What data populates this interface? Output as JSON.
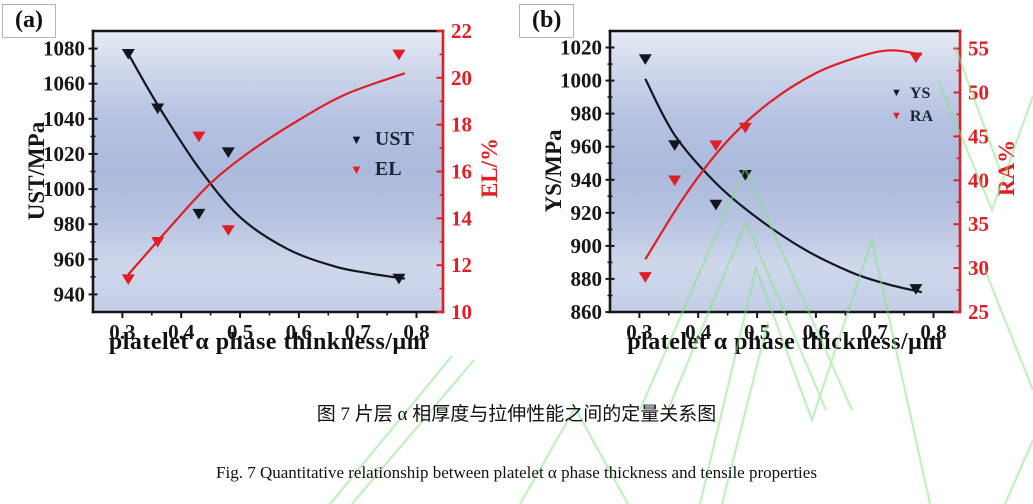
{
  "captions": {
    "zh": "图 7 片层 α 相厚度与拉伸性能之间的定量关系图",
    "en": "Fig. 7 Quantitative relationship between platelet α phase thickness and tensile properties"
  },
  "colors": {
    "black_series": "#14161f",
    "red_series": "#e01e25",
    "axis_black": "#161616",
    "legend_text": "#1c2533",
    "watermark_green": "#7fe57f",
    "plot_gradient": [
      [
        "0%",
        "#e7ecf5"
      ],
      [
        "10%",
        "#d4dcee"
      ],
      [
        "30%",
        "#b7c3e2"
      ],
      [
        "50%",
        "#abb9dc"
      ],
      [
        "68%",
        "#b8c4e1"
      ],
      [
        "84%",
        "#cfd8eb"
      ],
      [
        "100%",
        "#c3cee6"
      ]
    ]
  },
  "chart_data": [
    {
      "type": "scatter",
      "panel_label": "(a)",
      "x_label": "platelet α phase thinkness/μm",
      "xlim": [
        0.25,
        0.845
      ],
      "x_ticks": [
        0.3,
        0.4,
        0.5,
        0.6,
        0.7,
        0.8
      ],
      "left_axis": {
        "label": "UST/MPa",
        "lim": [
          930,
          1090
        ],
        "ticks": [
          940,
          960,
          980,
          1000,
          1020,
          1040,
          1060,
          1080
        ],
        "color": "#161616"
      },
      "right_axis": {
        "label": "EL/%",
        "lim": [
          10,
          22
        ],
        "ticks": [
          10,
          12,
          14,
          16,
          18,
          20,
          22
        ],
        "color": "#e01e25"
      },
      "legend_position": "middle-right",
      "grid": false,
      "series": [
        {
          "name": "UST",
          "axis": "left",
          "color": "#14161f",
          "marker": "triangle-down",
          "points": [
            [
              0.31,
              1077
            ],
            [
              0.36,
              1046
            ],
            [
              0.43,
              986
            ],
            [
              0.48,
              1021
            ],
            [
              0.77,
              949
            ]
          ],
          "trend": [
            [
              0.31,
              1077
            ],
            [
              0.36,
              1048
            ],
            [
              0.43,
              1012
            ],
            [
              0.5,
              984
            ],
            [
              0.58,
              966
            ],
            [
              0.66,
              956
            ],
            [
              0.72,
              952
            ],
            [
              0.78,
              949
            ]
          ]
        },
        {
          "name": "EL",
          "axis": "right",
          "color": "#e01e25",
          "marker": "triangle-down",
          "points": [
            [
              0.31,
              11.4
            ],
            [
              0.36,
              13.0
            ],
            [
              0.43,
              17.5
            ],
            [
              0.48,
              13.5
            ],
            [
              0.77,
              21.0
            ]
          ],
          "trend": [
            [
              0.31,
              11.6
            ],
            [
              0.38,
              13.6
            ],
            [
              0.45,
              15.5
            ],
            [
              0.52,
              16.9
            ],
            [
              0.6,
              18.2
            ],
            [
              0.68,
              19.3
            ],
            [
              0.78,
              20.2
            ]
          ]
        }
      ]
    },
    {
      "type": "scatter",
      "panel_label": "(b)",
      "x_label": "platelet α phase thickness/μm",
      "xlim": [
        0.25,
        0.845
      ],
      "x_ticks": [
        0.3,
        0.4,
        0.5,
        0.6,
        0.7,
        0.8
      ],
      "left_axis": {
        "label": "YS/MPa",
        "lim": [
          860,
          1030
        ],
        "ticks": [
          860,
          880,
          900,
          920,
          940,
          960,
          980,
          1000,
          1020
        ],
        "color": "#161616"
      },
      "right_axis": {
        "label": "RA%",
        "lim": [
          25,
          57
        ],
        "ticks": [
          25,
          30,
          35,
          40,
          45,
          50,
          55
        ],
        "color": "#e01e25"
      },
      "legend_position": "top-right",
      "grid": false,
      "series": [
        {
          "name": "YS",
          "axis": "left",
          "color": "#14161f",
          "marker": "triangle-down",
          "points": [
            [
              0.31,
              1013
            ],
            [
              0.36,
              961
            ],
            [
              0.43,
              925
            ],
            [
              0.48,
              943
            ],
            [
              0.77,
              874
            ]
          ],
          "trend": [
            [
              0.31,
              1001
            ],
            [
              0.36,
              967
            ],
            [
              0.43,
              938
            ],
            [
              0.5,
              917
            ],
            [
              0.58,
              898
            ],
            [
              0.66,
              884
            ],
            [
              0.72,
              877
            ],
            [
              0.78,
              872
            ]
          ]
        },
        {
          "name": "RA",
          "axis": "right",
          "color": "#e01e25",
          "marker": "triangle-down",
          "points": [
            [
              0.31,
              29
            ],
            [
              0.36,
              40
            ],
            [
              0.43,
              44
            ],
            [
              0.48,
              46
            ],
            [
              0.77,
              54
            ]
          ],
          "trend": [
            [
              0.31,
              31
            ],
            [
              0.38,
              38.5
            ],
            [
              0.45,
              44.5
            ],
            [
              0.52,
              48.8
            ],
            [
              0.6,
              52.2
            ],
            [
              0.68,
              54.2
            ],
            [
              0.73,
              54.8
            ],
            [
              0.78,
              54.3
            ]
          ]
        }
      ]
    }
  ]
}
